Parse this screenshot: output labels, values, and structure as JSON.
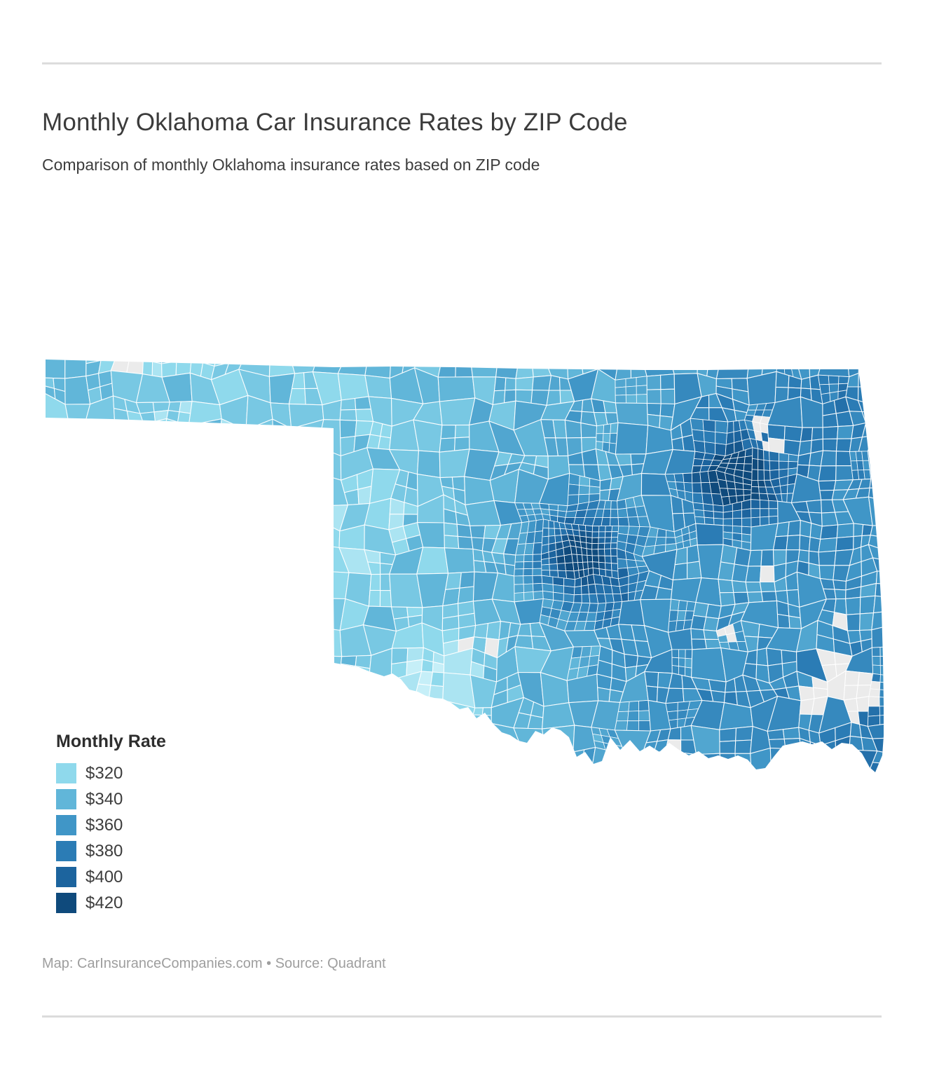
{
  "page": {
    "title": "Monthly Oklahoma Car Insurance Rates by ZIP Code",
    "subtitle": "Comparison of monthly Oklahoma insurance rates based on ZIP code",
    "footer": "Map: CarInsuranceCompanies.com • Source: Quadrant"
  },
  "legend": {
    "title": "Monthly Rate",
    "items": [
      {
        "label": "$320",
        "color": "#8fd9ec"
      },
      {
        "label": "$340",
        "color": "#61b6d9"
      },
      {
        "label": "$360",
        "color": "#4096c7"
      },
      {
        "label": "$380",
        "color": "#2b7cb5"
      },
      {
        "label": "$400",
        "color": "#1c649e"
      },
      {
        "label": "$420",
        "color": "#0f4a7c"
      }
    ]
  },
  "map": {
    "region": "Oklahoma, USA",
    "no_data_color": "#ebebeb",
    "boundary_color": "#ffffff"
  },
  "chart_data": {
    "type": "heatmap",
    "subtype": "choropleth-map",
    "title": "Monthly Oklahoma Car Insurance Rates by ZIP Code",
    "region": "Oklahoma, USA",
    "unit": "USD per month",
    "legend_title": "Monthly Rate",
    "legend_position": "bottom-left",
    "scale_stops": [
      320,
      340,
      360,
      380,
      400,
      420
    ],
    "scale_colors": [
      "#8fd9ec",
      "#61b6d9",
      "#4096c7",
      "#2b7cb5",
      "#1c649e",
      "#0f4a7c"
    ],
    "regional_values": [
      {
        "area": "Panhandle (northwest strip)",
        "approx_monthly_rate": 320
      },
      {
        "area": "Southwest corner (lightest area)",
        "approx_monthly_rate": 315
      },
      {
        "area": "Western Oklahoma",
        "approx_monthly_rate": 330
      },
      {
        "area": "North-central Oklahoma",
        "approx_monthly_rate": 340
      },
      {
        "area": "Oklahoma City metro (dark central cluster)",
        "approx_monthly_rate": 410
      },
      {
        "area": "Tulsa metro (dark northeastern cluster)",
        "approx_monthly_rate": 415
      },
      {
        "area": "East-central Oklahoma",
        "approx_monthly_rate": 360
      },
      {
        "area": "Southeast Oklahoma",
        "approx_monthly_rate": 375
      },
      {
        "area": "Lakes / no-data patches (gray)",
        "approx_monthly_rate": null
      }
    ],
    "map_credit": "CarInsuranceCompanies.com",
    "source": "Quadrant"
  }
}
